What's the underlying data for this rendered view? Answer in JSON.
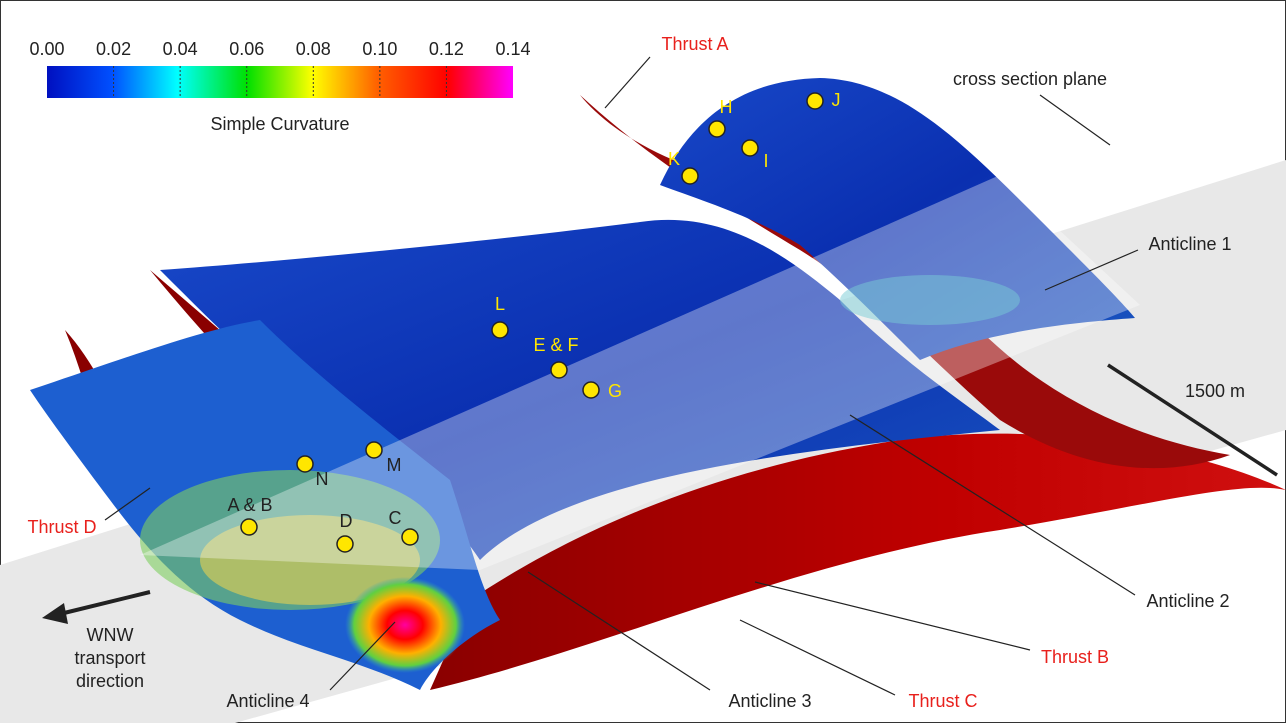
{
  "colorbar": {
    "title": "Simple Curvature",
    "ticks": [
      {
        "value": 0,
        "label": "0.00"
      },
      {
        "value": 0.02,
        "label": "0.02"
      },
      {
        "value": 0.04,
        "label": "0.04"
      },
      {
        "value": 0.06,
        "label": "0.06"
      },
      {
        "value": 0.08,
        "label": "0.08"
      },
      {
        "value": 0.1,
        "label": "0.10"
      },
      {
        "value": 0.12,
        "label": "0.12"
      },
      {
        "value": 0.14,
        "label": "0.14"
      }
    ]
  },
  "thrusts": [
    "Thrust A",
    "Thrust B",
    "Thrust C",
    "Thrust D"
  ],
  "anticlines": [
    "Anticline 1",
    "Anticline 2",
    "Anticline 3",
    "Anticline 4"
  ],
  "plane_label": "cross section plane",
  "scale_label": "1500 m",
  "transport_label": [
    "WNW",
    "transport",
    "direction"
  ],
  "points": [
    "A & B",
    "C",
    "D",
    "E & F",
    "G",
    "H",
    "I",
    "J",
    "K",
    "L",
    "M",
    "N"
  ]
}
